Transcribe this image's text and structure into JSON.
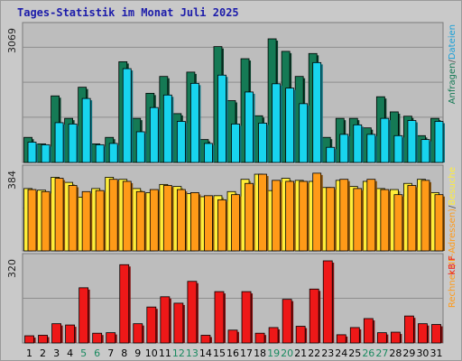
{
  "title": "Tages-Statistik im Monat Juli 2025",
  "colors": {
    "background": "#c9c9c9",
    "panel": "#bdbdbd",
    "grid": "#8e8e8e",
    "title": "#1c1caa",
    "weekday_label": "#000000",
    "weekend_label": "#1a8a60",
    "hits": "#157a55",
    "files": "#18d4ee",
    "visits": "#ffee3a",
    "sites": "#ff9a18",
    "kbytes": "#ee1818"
  },
  "chart_data": [
    {
      "type": "bar",
      "categories": [
        "1",
        "2",
        "3",
        "4",
        "5",
        "6",
        "7",
        "8",
        "9",
        "10",
        "11",
        "12",
        "13",
        "14",
        "15",
        "16",
        "17",
        "18",
        "19",
        "20",
        "21",
        "22",
        "23",
        "24",
        "25",
        "26",
        "27",
        "28",
        "29",
        "30",
        "31"
      ],
      "weekend_days": [
        "5",
        "6",
        "12",
        "13",
        "19",
        "20",
        "26",
        "27"
      ],
      "ymax_label": "3069",
      "ylim": [
        0,
        3069
      ],
      "legend": [
        {
          "text": "Anfragen",
          "color": "#157a55"
        },
        {
          "text": "/",
          "color": "#555555"
        },
        {
          "text": "Dateien",
          "color": "#18a0d8"
        }
      ],
      "series": [
        {
          "name": "Anfragen",
          "color": "#157a55",
          "values": [
            580,
            430,
            1540,
            1020,
            1740,
            430,
            580,
            2330,
            1020,
            1600,
            1990,
            1130,
            2090,
            530,
            2680,
            1430,
            2400,
            1080,
            2860,
            2570,
            1990,
            2520,
            580,
            1020,
            1020,
            800,
            1520,
            1170,
            1070,
            620,
            1020
          ]
        },
        {
          "name": "Dateien",
          "color": "#18d4ee",
          "values": [
            470,
            410,
            920,
            890,
            1480,
            410,
            440,
            2170,
            710,
            1270,
            1560,
            950,
            1830,
            440,
            2020,
            890,
            1630,
            910,
            1820,
            1720,
            1360,
            2310,
            350,
            650,
            870,
            650,
            1020,
            620,
            970,
            530,
            950
          ]
        }
      ]
    },
    {
      "type": "bar",
      "categories": [
        "1",
        "2",
        "3",
        "4",
        "5",
        "6",
        "7",
        "8",
        "9",
        "10",
        "11",
        "12",
        "13",
        "14",
        "15",
        "16",
        "17",
        "18",
        "19",
        "20",
        "21",
        "22",
        "23",
        "24",
        "25",
        "26",
        "27",
        "28",
        "29",
        "30",
        "31"
      ],
      "ymax_label": "384",
      "ylim": [
        0,
        384
      ],
      "legend": [
        {
          "text": "Rechner (IP-Adressen)",
          "color": "#ff9a18"
        },
        {
          "text": "/",
          "color": "#555555"
        },
        {
          "text": "Besuche",
          "color": "#ffee3a"
        }
      ],
      "series": [
        {
          "name": "Besuche",
          "color": "#ffee3a",
          "values": [
            305,
            297,
            360,
            335,
            263,
            305,
            360,
            350,
            305,
            285,
            325,
            315,
            280,
            265,
            270,
            290,
            350,
            375,
            295,
            355,
            345,
            340,
            310,
            345,
            315,
            340,
            305,
            300,
            330,
            350,
            285
          ]
        },
        {
          "name": "Rechner (IP-Adressen)",
          "color": "#ff9a18",
          "values": [
            300,
            290,
            355,
            320,
            290,
            295,
            350,
            340,
            290,
            300,
            320,
            300,
            285,
            270,
            250,
            275,
            330,
            375,
            345,
            340,
            340,
            380,
            310,
            350,
            305,
            350,
            300,
            275,
            320,
            345,
            275
          ]
        }
      ]
    },
    {
      "type": "bar",
      "categories": [
        "1",
        "2",
        "3",
        "4",
        "5",
        "6",
        "7",
        "8",
        "9",
        "10",
        "11",
        "12",
        "13",
        "14",
        "15",
        "16",
        "17",
        "18",
        "19",
        "20",
        "21",
        "22",
        "23",
        "24",
        "25",
        "26",
        "27",
        "28",
        "29",
        "30",
        "31"
      ],
      "ymax_label": "320",
      "ylim": [
        0,
        320
      ],
      "legend": [
        {
          "text": "kB F",
          "color": "#ee1818"
        }
      ],
      "series": [
        {
          "name": "kB F",
          "color": "#ee1818",
          "values": [
            28,
            30,
            75,
            70,
            215,
            38,
            40,
            305,
            75,
            140,
            180,
            155,
            240,
            30,
            200,
            50,
            200,
            38,
            60,
            170,
            65,
            210,
            320,
            32,
            60,
            95,
            40,
            42,
            105,
            75,
            72
          ]
        }
      ]
    }
  ]
}
